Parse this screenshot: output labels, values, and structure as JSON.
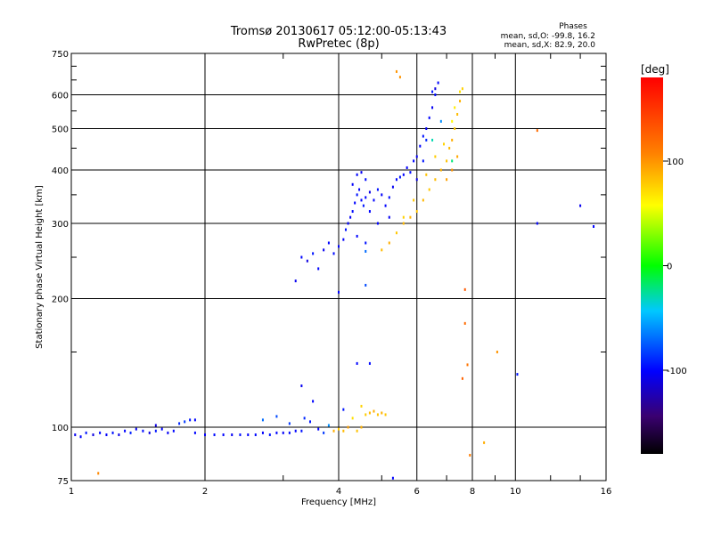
{
  "chart_data": {
    "type": "scatter",
    "title": "Tromsø 20130617 05:12:00-05:13:43",
    "subtitle": "RwPretec (8p)",
    "xlabel": "Frequency [MHz]",
    "ylabel": "Stationary phase Virtual Height [km]",
    "x_scale": "log",
    "y_scale": "log",
    "xlim": [
      1,
      16
    ],
    "ylim": [
      75,
      750
    ],
    "x_ticks": [
      1,
      2,
      4,
      6,
      8,
      10,
      16
    ],
    "x_tick_labels": [
      "1",
      "2",
      "4",
      "6",
      "8",
      "10",
      "16"
    ],
    "y_ticks": [
      75,
      100,
      200,
      300,
      400,
      500,
      600,
      750
    ],
    "y_tick_labels": [
      "75",
      "100",
      "200",
      "300",
      "400",
      "500",
      "600",
      "750"
    ],
    "grid": true,
    "phase_legend": {
      "title": "Phases",
      "line1": "mean, sd,O: -99.8, 16.2",
      "line2": "mean, sd,X:  82.9, 20.0"
    },
    "colorbar": {
      "label": "[deg]",
      "range": [
        -180,
        180
      ],
      "ticks": [
        100,
        0,
        -100
      ],
      "tick_labels": [
        "100",
        "0",
        "-100"
      ]
    },
    "series": [
      {
        "name": "O",
        "points": [
          [
            1.02,
            96,
            -105
          ],
          [
            1.05,
            95,
            -100
          ],
          [
            1.08,
            97,
            -95
          ],
          [
            1.12,
            96,
            -110
          ],
          [
            1.16,
            97,
            -98
          ],
          [
            1.2,
            96,
            -102
          ],
          [
            1.24,
            97,
            -96
          ],
          [
            1.28,
            96,
            -108
          ],
          [
            1.32,
            98,
            -100
          ],
          [
            1.36,
            97,
            -92
          ],
          [
            1.4,
            99,
            -104
          ],
          [
            1.45,
            98,
            -98
          ],
          [
            1.5,
            97,
            -110
          ],
          [
            1.55,
            98,
            -95
          ],
          [
            1.6,
            99,
            -100
          ],
          [
            1.65,
            97,
            -104
          ],
          [
            1.7,
            98,
            -99
          ],
          [
            1.75,
            102,
            -90
          ],
          [
            1.8,
            103,
            -85
          ],
          [
            1.85,
            104,
            -95
          ],
          [
            1.9,
            97,
            -100
          ],
          [
            2.0,
            96,
            -103
          ],
          [
            2.1,
            96,
            -98
          ],
          [
            2.2,
            96,
            -100
          ],
          [
            2.3,
            96,
            -104
          ],
          [
            2.4,
            96,
            -97
          ],
          [
            2.5,
            96,
            -101
          ],
          [
            2.6,
            96,
            -99
          ],
          [
            2.7,
            97,
            -102
          ],
          [
            2.8,
            96,
            -95
          ],
          [
            2.9,
            97,
            -100
          ],
          [
            3.0,
            97,
            -103
          ],
          [
            3.1,
            97,
            -98
          ],
          [
            3.2,
            98,
            -100
          ],
          [
            3.3,
            98,
            -96
          ],
          [
            3.35,
            105,
            -90
          ],
          [
            3.45,
            103,
            -95
          ],
          [
            3.6,
            99,
            -100
          ],
          [
            3.7,
            97,
            -85
          ],
          [
            3.8,
            101,
            -60
          ],
          [
            2.7,
            104,
            -70
          ],
          [
            2.9,
            106,
            -80
          ],
          [
            3.1,
            102,
            -85
          ],
          [
            1.9,
            104,
            -100
          ],
          [
            1.55,
            101,
            -110
          ],
          [
            3.3,
            250,
            -100
          ],
          [
            3.4,
            245,
            -110
          ],
          [
            3.5,
            255,
            -95
          ],
          [
            3.6,
            235,
            -100
          ],
          [
            3.7,
            260,
            -105
          ],
          [
            3.8,
            270,
            -100
          ],
          [
            3.9,
            255,
            -98
          ],
          [
            4.0,
            265,
            -100
          ],
          [
            4.1,
            275,
            -102
          ],
          [
            4.15,
            290,
            -95
          ],
          [
            4.2,
            300,
            -100
          ],
          [
            4.25,
            310,
            -104
          ],
          [
            4.3,
            320,
            -98
          ],
          [
            4.35,
            335,
            -100
          ],
          [
            4.4,
            350,
            -96
          ],
          [
            4.45,
            360,
            -102
          ],
          [
            4.5,
            340,
            -100
          ],
          [
            4.55,
            330,
            -95
          ],
          [
            4.6,
            345,
            -100
          ],
          [
            4.7,
            355,
            -108
          ],
          [
            4.8,
            340,
            -100
          ],
          [
            4.9,
            360,
            -96
          ],
          [
            5.0,
            350,
            -102
          ],
          [
            5.1,
            330,
            -100
          ],
          [
            5.2,
            345,
            -98
          ],
          [
            5.3,
            365,
            -104
          ],
          [
            5.4,
            380,
            -100
          ],
          [
            5.5,
            385,
            -95
          ],
          [
            5.6,
            390,
            -100
          ],
          [
            5.7,
            405,
            -102
          ],
          [
            5.8,
            395,
            -98
          ],
          [
            5.9,
            420,
            -100
          ],
          [
            6.0,
            430,
            -105
          ],
          [
            6.1,
            455,
            -100
          ],
          [
            6.2,
            480,
            -96
          ],
          [
            6.3,
            500,
            -102
          ],
          [
            6.4,
            530,
            -100
          ],
          [
            6.5,
            560,
            -104
          ],
          [
            6.6,
            600,
            -98
          ],
          [
            6.7,
            640,
            -100
          ],
          [
            6.6,
            620,
            -110
          ],
          [
            6.5,
            610,
            -95
          ],
          [
            4.4,
            390,
            -100
          ],
          [
            4.5,
            395,
            -105
          ],
          [
            4.6,
            380,
            -98
          ],
          [
            4.3,
            370,
            -102
          ],
          [
            4.7,
            320,
            -100
          ],
          [
            4.9,
            300,
            -100
          ],
          [
            5.2,
            310,
            -104
          ],
          [
            4.4,
            280,
            -100
          ],
          [
            4.6,
            270,
            -96
          ],
          [
            3.2,
            220,
            -105
          ],
          [
            4.0,
            207,
            -100
          ],
          [
            4.6,
            215,
            -80
          ],
          [
            4.4,
            141,
            -100
          ],
          [
            4.7,
            141,
            -98
          ],
          [
            3.3,
            125,
            -105
          ],
          [
            3.5,
            115,
            -100
          ],
          [
            4.1,
            110,
            -95
          ],
          [
            5.3,
            76,
            -100
          ],
          [
            6.3,
            470,
            -90
          ],
          [
            6.0,
            380,
            -110
          ],
          [
            6.2,
            420,
            -95
          ]
        ]
      },
      {
        "name": "X",
        "points": [
          [
            3.9,
            98,
            90
          ],
          [
            4.0,
            99,
            80
          ],
          [
            4.1,
            98,
            85
          ],
          [
            4.2,
            100,
            95
          ],
          [
            4.4,
            98,
            82
          ],
          [
            4.5,
            100,
            88
          ],
          [
            4.6,
            107,
            78
          ],
          [
            4.7,
            108,
            85
          ],
          [
            4.8,
            109,
            90
          ],
          [
            4.9,
            107,
            82
          ],
          [
            5.0,
            108,
            88
          ],
          [
            5.1,
            107,
            80
          ],
          [
            4.5,
            112,
            75
          ],
          [
            4.3,
            105,
            70
          ],
          [
            5.0,
            260,
            85
          ],
          [
            5.2,
            270,
            90
          ],
          [
            5.4,
            285,
            80
          ],
          [
            5.6,
            300,
            85
          ],
          [
            5.8,
            310,
            88
          ],
          [
            6.0,
            320,
            82
          ],
          [
            6.2,
            340,
            86
          ],
          [
            6.4,
            360,
            80
          ],
          [
            6.6,
            380,
            84
          ],
          [
            6.8,
            400,
            88
          ],
          [
            7.0,
            420,
            82
          ],
          [
            7.1,
            450,
            85
          ],
          [
            7.2,
            470,
            90
          ],
          [
            7.3,
            500,
            80
          ],
          [
            7.4,
            540,
            84
          ],
          [
            7.5,
            580,
            88
          ],
          [
            7.6,
            620,
            76
          ],
          [
            7.5,
            610,
            70
          ],
          [
            7.3,
            560,
            65
          ],
          [
            7.2,
            520,
            60
          ],
          [
            6.9,
            460,
            75
          ],
          [
            6.6,
            430,
            78
          ],
          [
            6.3,
            390,
            82
          ],
          [
            5.9,
            340,
            80
          ],
          [
            5.6,
            310,
            76
          ],
          [
            7.0,
            380,
            95
          ],
          [
            7.2,
            400,
            100
          ],
          [
            7.4,
            430,
            92
          ],
          [
            5.4,
            680,
            100
          ],
          [
            5.5,
            660,
            100
          ],
          [
            1.15,
            78,
            105
          ],
          [
            7.7,
            210,
            130
          ],
          [
            7.7,
            175,
            120
          ],
          [
            7.9,
            86,
            110
          ],
          [
            8.5,
            92,
            90
          ],
          [
            9.1,
            150,
            100
          ],
          [
            11.2,
            495,
            120
          ],
          [
            7.6,
            130,
            125
          ],
          [
            7.8,
            140,
            115
          ]
        ]
      }
    ],
    "extra_points": [
      [
        10.1,
        133,
        -95
      ],
      [
        11.2,
        300,
        -100
      ],
      [
        14.0,
        330,
        -105
      ],
      [
        15.0,
        295,
        -100
      ],
      [
        6.8,
        520,
        -60
      ],
      [
        6.5,
        470,
        -30
      ],
      [
        7.2,
        420,
        -20
      ],
      [
        4.6,
        258,
        -70
      ]
    ]
  }
}
